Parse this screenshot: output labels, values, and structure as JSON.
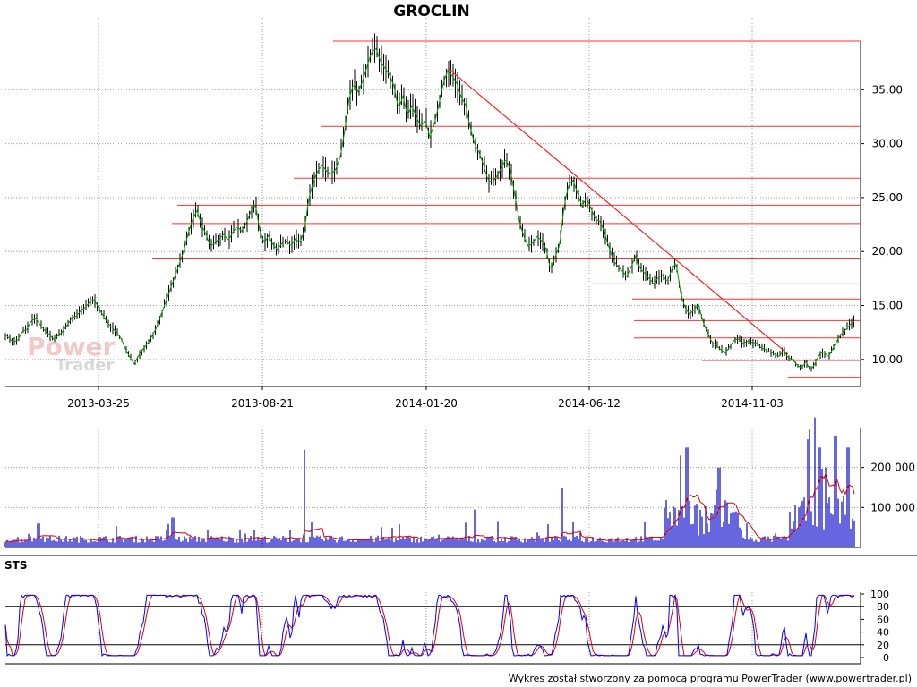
{
  "chart_data": [
    {
      "panel": "price",
      "type": "candlestick",
      "title": "GROCLIN",
      "x_ticks": [
        "2013-03-25",
        "2013-08-21",
        "2014-01-20",
        "2014-06-12",
        "2014-11-03"
      ],
      "y_ticks": [
        "10,00",
        "15,00",
        "20,00",
        "25,00",
        "30,00",
        "35,00"
      ],
      "ylim": [
        7.5,
        39.5
      ],
      "grid": "dotted",
      "close_path": [
        [
          0,
          13.0
        ],
        [
          5,
          12.4
        ],
        [
          10,
          12.0
        ],
        [
          15,
          11.6
        ],
        [
          20,
          11.8
        ],
        [
          25,
          12.6
        ],
        [
          30,
          12.8
        ],
        [
          35,
          13.6
        ],
        [
          40,
          13.8
        ],
        [
          45,
          13.2
        ],
        [
          50,
          12.7
        ],
        [
          55,
          12.3
        ],
        [
          60,
          11.9
        ],
        [
          65,
          12.2
        ],
        [
          70,
          12.6
        ],
        [
          75,
          13.2
        ],
        [
          80,
          13.8
        ],
        [
          85,
          14.0
        ],
        [
          90,
          14.5
        ],
        [
          95,
          14.8
        ],
        [
          100,
          15.3
        ],
        [
          105,
          15.6
        ],
        [
          110,
          14.8
        ],
        [
          115,
          14.1
        ],
        [
          120,
          13.4
        ],
        [
          125,
          13.0
        ],
        [
          130,
          12.5
        ],
        [
          135,
          12.0
        ],
        [
          140,
          11.0
        ],
        [
          145,
          10.2
        ],
        [
          150,
          9.6
        ],
        [
          155,
          10.4
        ],
        [
          160,
          11.0
        ],
        [
          165,
          11.5
        ],
        [
          170,
          12.2
        ],
        [
          175,
          13.0
        ],
        [
          180,
          14.2
        ],
        [
          185,
          15.3
        ],
        [
          190,
          16.5
        ],
        [
          195,
          17.6
        ],
        [
          200,
          18.8
        ],
        [
          205,
          20.0
        ],
        [
          210,
          21.6
        ],
        [
          215,
          23.0
        ],
        [
          220,
          23.8
        ],
        [
          225,
          22.5
        ],
        [
          230,
          21.6
        ],
        [
          235,
          20.5
        ],
        [
          240,
          20.8
        ],
        [
          245,
          21.2
        ],
        [
          250,
          21.6
        ],
        [
          255,
          21.0
        ],
        [
          260,
          21.8
        ],
        [
          265,
          22.3
        ],
        [
          270,
          21.9
        ],
        [
          275,
          22.6
        ],
        [
          280,
          23.7
        ],
        [
          285,
          24.5
        ],
        [
          290,
          22.0
        ],
        [
          295,
          20.8
        ],
        [
          300,
          21.5
        ],
        [
          305,
          20.6
        ],
        [
          310,
          20.2
        ],
        [
          315,
          20.8
        ],
        [
          320,
          21.0
        ],
        [
          325,
          20.5
        ],
        [
          330,
          21.2
        ],
        [
          335,
          20.8
        ],
        [
          340,
          22.0
        ],
        [
          345,
          25.0
        ],
        [
          350,
          26.5
        ],
        [
          355,
          27.5
        ],
        [
          360,
          28.0
        ],
        [
          365,
          27.4
        ],
        [
          370,
          27.2
        ],
        [
          375,
          27.6
        ],
        [
          380,
          28.8
        ],
        [
          385,
          31.2
        ],
        [
          390,
          34.2
        ],
        [
          395,
          35.6
        ],
        [
          400,
          34.8
        ],
        [
          405,
          35.8
        ],
        [
          410,
          37.2
        ],
        [
          415,
          38.5
        ],
        [
          420,
          38.8
        ],
        [
          425,
          37.6
        ],
        [
          430,
          37.0
        ],
        [
          435,
          36.4
        ],
        [
          440,
          35.3
        ],
        [
          445,
          33.2
        ],
        [
          450,
          34.4
        ],
        [
          455,
          32.6
        ],
        [
          460,
          33.5
        ],
        [
          465,
          32.5
        ],
        [
          470,
          31.6
        ],
        [
          475,
          32.2
        ],
        [
          480,
          30.6
        ],
        [
          485,
          31.8
        ],
        [
          490,
          33.6
        ],
        [
          495,
          35.6
        ],
        [
          500,
          36.8
        ],
        [
          505,
          36.3
        ],
        [
          510,
          35.6
        ],
        [
          515,
          34.3
        ],
        [
          520,
          33.6
        ],
        [
          525,
          31.5
        ],
        [
          530,
          30.0
        ],
        [
          535,
          29.2
        ],
        [
          540,
          28.0
        ],
        [
          545,
          26.6
        ],
        [
          550,
          26.4
        ],
        [
          555,
          27.0
        ],
        [
          560,
          27.8
        ],
        [
          565,
          28.6
        ],
        [
          570,
          27.5
        ],
        [
          575,
          25.2
        ],
        [
          580,
          22.8
        ],
        [
          585,
          21.4
        ],
        [
          590,
          20.5
        ],
        [
          595,
          20.8
        ],
        [
          600,
          21.4
        ],
        [
          605,
          21.0
        ],
        [
          610,
          20.2
        ],
        [
          615,
          18.2
        ],
        [
          620,
          19.5
        ],
        [
          625,
          20.6
        ],
        [
          630,
          24.2
        ],
        [
          635,
          26.2
        ],
        [
          640,
          26.6
        ],
        [
          645,
          25.4
        ],
        [
          650,
          24.2
        ],
        [
          655,
          25.0
        ],
        [
          660,
          24.0
        ],
        [
          665,
          23.0
        ],
        [
          670,
          22.8
        ],
        [
          675,
          21.8
        ],
        [
          680,
          20.4
        ],
        [
          685,
          19.2
        ],
        [
          690,
          18.6
        ],
        [
          695,
          18.2
        ],
        [
          700,
          17.7
        ],
        [
          705,
          18.6
        ],
        [
          710,
          19.6
        ],
        [
          715,
          18.4
        ],
        [
          720,
          18.0
        ],
        [
          725,
          17.5
        ],
        [
          730,
          17.0
        ],
        [
          735,
          17.6
        ],
        [
          740,
          17.8
        ],
        [
          745,
          17.2
        ],
        [
          750,
          18.3
        ],
        [
          755,
          19.0
        ],
        [
          760,
          16.2
        ],
        [
          765,
          14.8
        ],
        [
          770,
          14.2
        ],
        [
          775,
          14.6
        ],
        [
          780,
          15.1
        ],
        [
          785,
          13.5
        ],
        [
          790,
          12.5
        ],
        [
          795,
          11.6
        ],
        [
          800,
          11.3
        ],
        [
          805,
          10.9
        ],
        [
          810,
          10.6
        ],
        [
          815,
          11.2
        ],
        [
          820,
          11.8
        ],
        [
          825,
          11.9
        ],
        [
          830,
          11.5
        ],
        [
          835,
          11.7
        ],
        [
          840,
          11.6
        ],
        [
          845,
          11.5
        ],
        [
          850,
          11.1
        ],
        [
          855,
          10.9
        ],
        [
          860,
          10.7
        ],
        [
          865,
          10.5
        ],
        [
          870,
          10.3
        ],
        [
          875,
          10.8
        ],
        [
          880,
          10.2
        ],
        [
          885,
          10.0
        ],
        [
          890,
          9.5
        ],
        [
          895,
          9.2
        ],
        [
          900,
          9.8
        ],
        [
          905,
          9.0
        ],
        [
          910,
          9.6
        ],
        [
          915,
          10.5
        ],
        [
          920,
          10.7
        ],
        [
          925,
          10.2
        ],
        [
          930,
          11.0
        ],
        [
          935,
          11.8
        ],
        [
          940,
          12.4
        ],
        [
          945,
          12.8
        ],
        [
          950,
          13.3
        ],
        [
          955,
          13.6
        ]
      ],
      "trendline": [
        [
          500,
          37.0
        ],
        [
          880,
          10.5
        ]
      ],
      "horizontal_lines": [
        {
          "value": 39.5,
          "x_from": 372
        },
        {
          "value": 31.6,
          "x_from": 358
        },
        {
          "value": 26.8,
          "x_from": 328
        },
        {
          "value": 24.3,
          "x_from": 198
        },
        {
          "value": 22.6,
          "x_from": 192
        },
        {
          "value": 19.4,
          "x_from": 170
        },
        {
          "value": 17.0,
          "x_from": 662
        },
        {
          "value": 15.6,
          "x_from": 706
        },
        {
          "value": 13.6,
          "x_from": 708
        },
        {
          "value": 12.0,
          "x_from": 708
        },
        {
          "value": 9.9,
          "x_from": 784
        },
        {
          "value": 8.3,
          "x_from": 880
        }
      ]
    },
    {
      "panel": "volume",
      "type": "bar",
      "y_ticks": [
        "100 000",
        "200 000"
      ],
      "ylim": [
        0,
        300000
      ],
      "bar_color": "#0000cc",
      "ma_color": "#e00000"
    },
    {
      "panel": "oscillator",
      "type": "line",
      "label": "STS",
      "y_ticks": [
        "0",
        "20",
        "40",
        "60",
        "80",
        "100"
      ],
      "ylim": [
        0,
        100
      ],
      "levels": [
        20,
        80
      ],
      "series": [
        {
          "color": "#0000ff"
        },
        {
          "color": "#e00000"
        }
      ]
    }
  ],
  "watermark": {
    "line1": "Power",
    "line2": "Trader"
  },
  "footer": "Wykres został stworzony za pomocą programu PowerTrader (www.powertrader.pl)"
}
